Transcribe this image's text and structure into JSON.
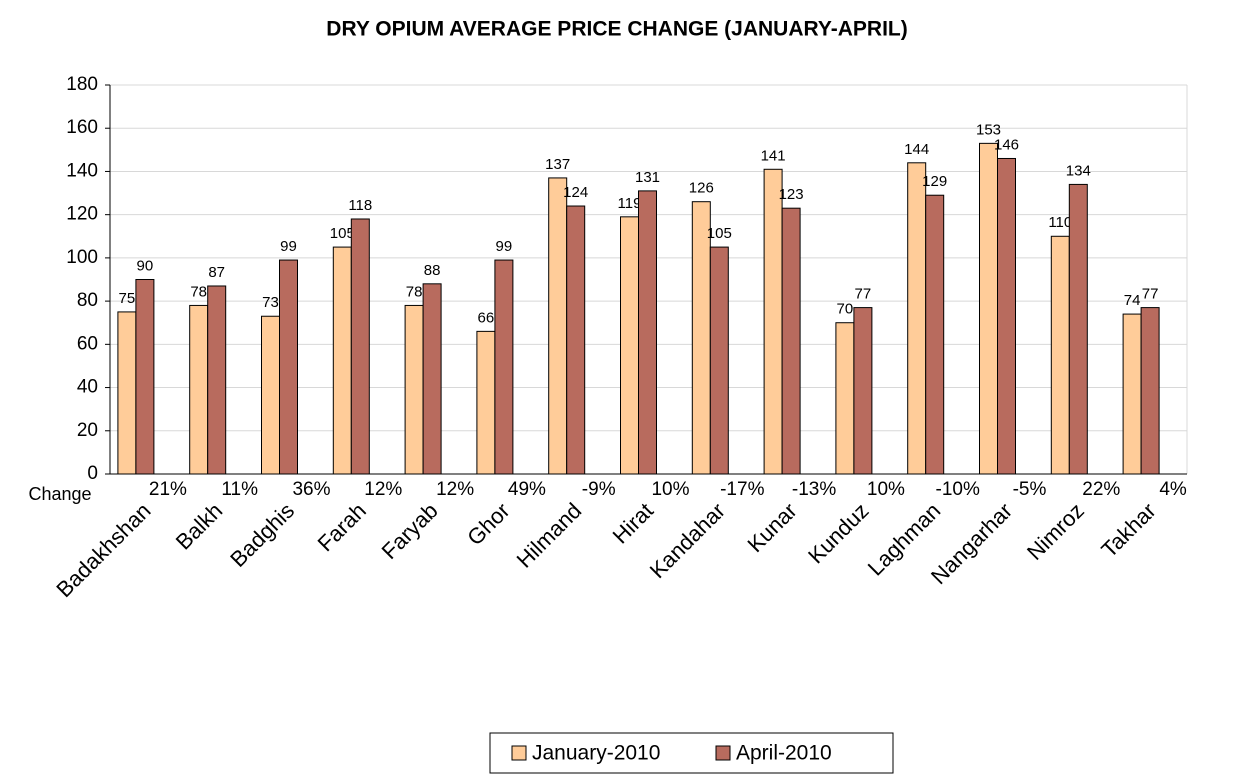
{
  "chart_data": {
    "type": "bar",
    "title": "DRY OPIUM AVERAGE PRICE CHANGE (JANUARY-APRIL)",
    "categories": [
      "Badakhshan",
      "Balkh",
      "Badghis",
      "Farah",
      "Faryab",
      "Ghor",
      "Hilmand",
      "Hirat",
      "Kandahar",
      "Kunar",
      "Kunduz",
      "Laghman",
      "Nangarhar",
      "Nimroz",
      "Takhar"
    ],
    "series": [
      {
        "name": "January-2010",
        "color": "#ffcc99",
        "values": [
          75,
          78,
          73,
          105,
          78,
          66,
          137,
          119,
          126,
          141,
          70,
          144,
          153,
          110,
          74
        ]
      },
      {
        "name": "April-2010",
        "color": "#b86b5e",
        "values": [
          90,
          87,
          99,
          118,
          88,
          99,
          124,
          131,
          105,
          123,
          77,
          129,
          146,
          134,
          77
        ]
      }
    ],
    "change": {
      "label": "Change",
      "values": [
        21,
        11,
        36,
        12,
        12,
        49,
        -9,
        10,
        -17,
        -13,
        10,
        -10,
        -5,
        22,
        4
      ],
      "value_labels": [
        "21%",
        "11%",
        "36%",
        "12%",
        "12%",
        "49%",
        "-9%",
        "10%",
        "-17%",
        "-13%",
        "10%",
        "-10%",
        "-5%",
        "22%",
        "4%"
      ]
    },
    "ylim": [
      0,
      180
    ],
    "yticks": [
      0,
      20,
      40,
      60,
      80,
      100,
      120,
      140,
      160,
      180
    ],
    "grid": true,
    "legend": "bottom"
  }
}
